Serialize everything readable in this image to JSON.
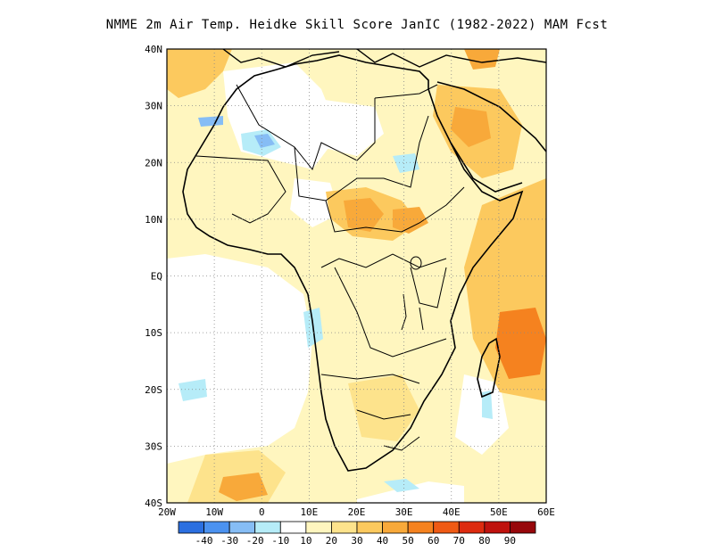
{
  "title": "NMME  2m Air Temp. Heidke Skill Score JanIC (1982-2022) MAM Fcst",
  "map": {
    "lon_labels": [
      "20W",
      "10W",
      "0",
      "10E",
      "20E",
      "30E",
      "40E",
      "50E",
      "60E"
    ],
    "lat_labels": [
      "40N",
      "30N",
      "20N",
      "10N",
      "EQ",
      "10S",
      "20S",
      "30S",
      "40S"
    ]
  },
  "colorbar": {
    "colors": [
      "#2b6fe0",
      "#4b92f0",
      "#86bdf5",
      "#b6ecf8",
      "#ffffff",
      "#fff6bf",
      "#fde38c",
      "#fcc95e",
      "#f8a93a",
      "#f5821f",
      "#ef5a14",
      "#dd2b0f",
      "#bf120d",
      "#97070b"
    ],
    "labels": [
      "-40",
      "-30",
      "-20",
      "-10",
      "10",
      "20",
      "30",
      "40",
      "50",
      "60",
      "70",
      "80",
      "90"
    ]
  }
}
